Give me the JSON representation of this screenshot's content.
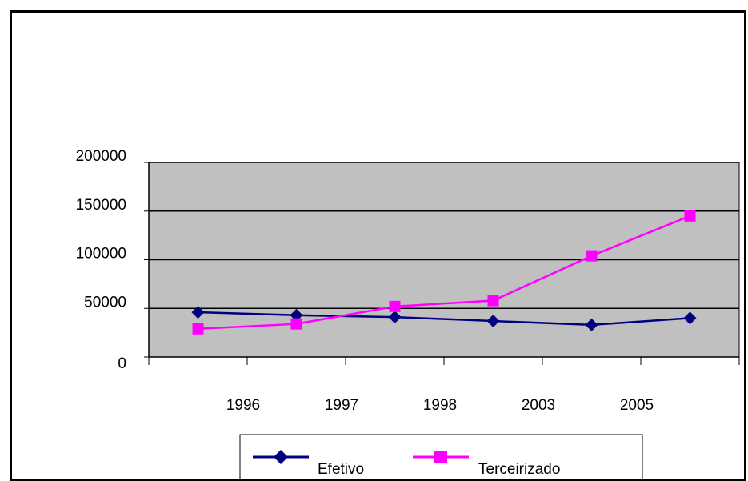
{
  "chart_data": {
    "type": "line",
    "categories": [
      "",
      "1996",
      "1997",
      "1998",
      "2003",
      "2005"
    ],
    "y_tick_labels": [
      "0",
      "50000",
      "100000",
      "150000",
      "200000"
    ],
    "ylim": [
      0,
      200000
    ],
    "grid": true,
    "legend_placement": "bottom",
    "plot_background": "#c0c0c0",
    "series": [
      {
        "name": "Efetivo",
        "color": "#000080",
        "marker": "diamond",
        "values": [
          46000,
          43000,
          41000,
          37000,
          33000,
          40000
        ]
      },
      {
        "name": "Terceirizado",
        "color": "#ff00ff",
        "marker": "square",
        "values": [
          29000,
          34000,
          52000,
          58000,
          104000,
          145000
        ]
      }
    ]
  }
}
